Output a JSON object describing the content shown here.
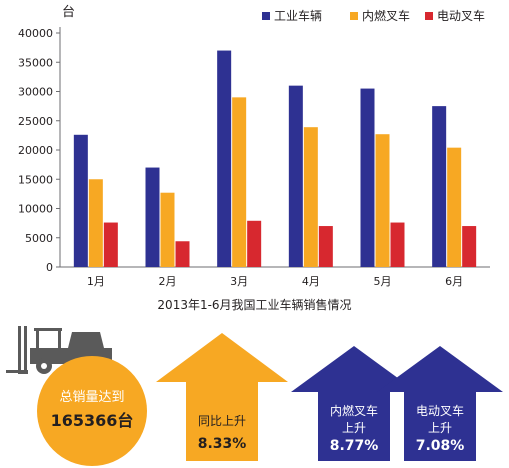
{
  "chart_data": {
    "type": "bar",
    "title": "2013年1-6月我国工业车辆销售情况",
    "ylabel": "台",
    "xlabel": "",
    "categories": [
      "1月",
      "2月",
      "3月",
      "4月",
      "5月",
      "6月"
    ],
    "ylim": [
      0,
      40000
    ],
    "yticks": [
      0,
      5000,
      10000,
      15000,
      20000,
      25000,
      30000,
      35000,
      40000
    ],
    "legend_position": "top-right",
    "grid": false,
    "series": [
      {
        "name": "工业车辆",
        "color": "#2e3192",
        "values": [
          22600,
          17000,
          37000,
          31000,
          30500,
          27500
        ]
      },
      {
        "name": "内燃叉车",
        "color": "#f7a823",
        "values": [
          15000,
          12700,
          29000,
          23900,
          22700,
          20400
        ]
      },
      {
        "name": "电动叉车",
        "color": "#d7282f",
        "values": [
          7600,
          4400,
          7900,
          7000,
          7600,
          7000
        ]
      }
    ]
  },
  "summary": {
    "total_label": "总销量达到",
    "total_value": "165366台",
    "yoy_label": "同比上升",
    "yoy_value": "8.33%",
    "ic_label_1": "内燃叉车",
    "ic_label_2": "上升",
    "ic_value": "8.77%",
    "el_label_1": "电动叉车",
    "el_label_2": "上升",
    "el_value": "7.08%"
  },
  "colors": {
    "navy": "#2e3192",
    "orange": "#f7a823",
    "red": "#d7282f",
    "forklift": "#5a5a5a"
  },
  "icons": [
    "forklift-icon",
    "up-arrow-icon"
  ]
}
